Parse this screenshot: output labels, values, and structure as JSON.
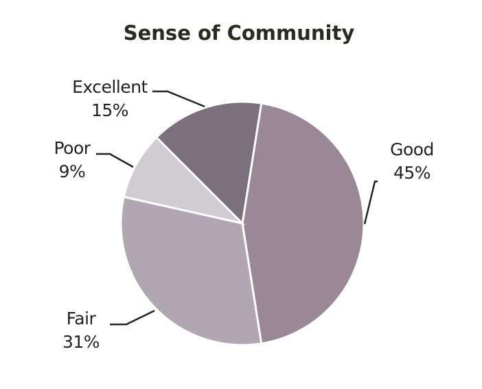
{
  "chart_data": {
    "type": "pie",
    "title": "Sense of Community",
    "slices": [
      {
        "label": "Good",
        "value": 45,
        "value_label": "45%",
        "color": "#9a8896"
      },
      {
        "label": "Fair",
        "value": 31,
        "value_label": "31%",
        "color": "#b3a6b3"
      },
      {
        "label": "Poor",
        "value": 9,
        "value_label": "9%",
        "color": "#d1cbd2"
      },
      {
        "label": "Excellent",
        "value": 15,
        "value_label": "15%",
        "color": "#7d707d"
      }
    ],
    "legend": "none",
    "data_labels": "outside with leader lines"
  }
}
